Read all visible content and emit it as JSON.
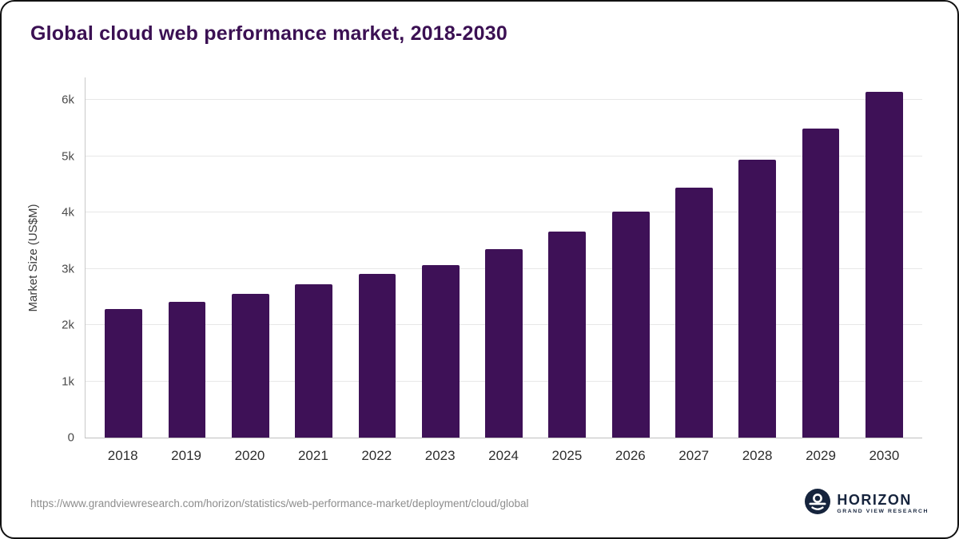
{
  "title": "Global cloud web performance market, 2018-2030",
  "source_url": "https://www.grandviewresearch.com/horizon/statistics/web-performance-market/deployment/cloud/global",
  "logo": {
    "name": "HORIZON",
    "subtitle": "GRAND VIEW RESEARCH"
  },
  "colors": {
    "bar": "#3e1157",
    "title": "#3b1053",
    "grid": "#e7e7e7",
    "tick_text": "#4a4a4a",
    "source_text": "#8d8d8d",
    "logo_navy": "#16243d"
  },
  "chart_data": {
    "type": "bar",
    "title": "Global cloud web performance market, 2018-2030",
    "categories": [
      "2018",
      "2019",
      "2020",
      "2021",
      "2022",
      "2023",
      "2024",
      "2025",
      "2026",
      "2027",
      "2028",
      "2029",
      "2030"
    ],
    "values": [
      2290,
      2410,
      2550,
      2720,
      2910,
      3060,
      3350,
      3660,
      4020,
      4440,
      4940,
      5490,
      6150
    ],
    "xlabel": "",
    "ylabel": "Market Size (US$M)",
    "ylim": [
      0,
      6400
    ],
    "yticks": [
      0,
      1000,
      2000,
      3000,
      4000,
      5000,
      6000
    ],
    "ytick_labels": [
      "0",
      "1k",
      "2k",
      "3k",
      "4k",
      "5k",
      "6k"
    ],
    "grid": "horizontal",
    "legend": "none",
    "bar_color": "#3e1157"
  }
}
